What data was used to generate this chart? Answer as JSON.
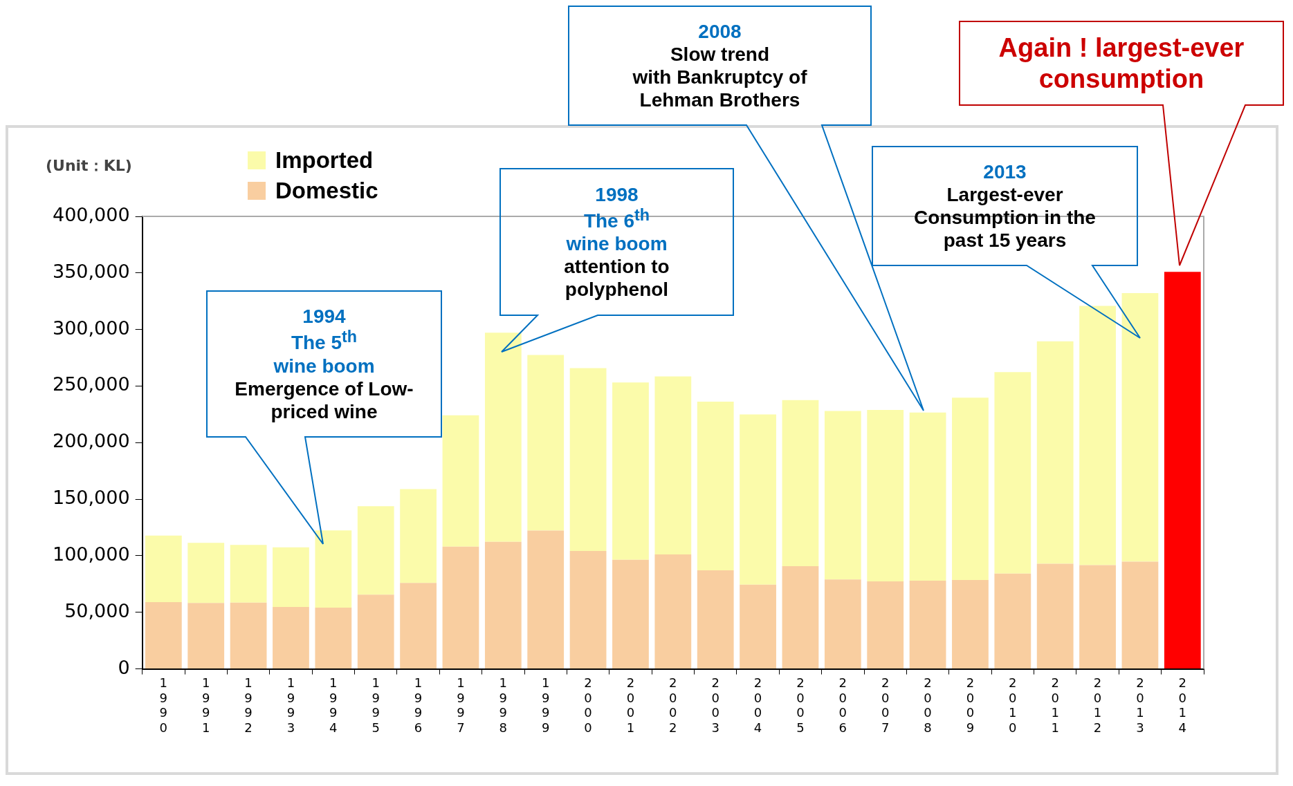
{
  "chart_data": {
    "type": "bar",
    "stacked": true,
    "ylabel": "(Unit：KL)",
    "legend": "top left",
    "grid": false,
    "categories": [
      "1990",
      "1991",
      "1992",
      "1993",
      "1994",
      "1995",
      "1996",
      "1997",
      "1998",
      "1999",
      "2000",
      "2001",
      "2002",
      "2003",
      "2004",
      "2005",
      "2006",
      "2007",
      "2008",
      "2009",
      "2010",
      "2011",
      "2012",
      "2013",
      "2014"
    ],
    "series": [
      {
        "name": "Domestic",
        "color": "#f9cea0",
        "values": [
          59100,
          58200,
          58500,
          54700,
          54100,
          65600,
          76000,
          108000,
          112400,
          122200,
          104200,
          96500,
          101200,
          87200,
          74400,
          90800,
          79000,
          77400,
          77900,
          78600,
          84200,
          93000,
          91700,
          94800,
          null
        ]
      },
      {
        "name": "Imported",
        "color": "#fbfbaa",
        "values": [
          58700,
          53300,
          51100,
          52800,
          68400,
          78200,
          82900,
          116200,
          184800,
          155300,
          161600,
          156700,
          157400,
          149000,
          150600,
          146800,
          149000,
          151500,
          148700,
          161100,
          178100,
          196500,
          229100,
          237300,
          null
        ]
      },
      {
        "color": "#ff0000",
        "values": [
          null,
          null,
          null,
          null,
          null,
          null,
          null,
          null,
          null,
          null,
          null,
          null,
          null,
          null,
          null,
          null,
          null,
          null,
          null,
          null,
          null,
          null,
          null,
          null,
          350900
        ]
      }
    ],
    "ylim": [
      0,
      400000
    ],
    "yticks": [
      0,
      {
        "value": 50000,
        "label": "50,000"
      },
      {
        "value": 100000,
        "label": "100,000"
      },
      {
        "value": 150000,
        "label": "150,000"
      },
      {
        "value": 200000,
        "label": "200,000"
      },
      {
        "value": 250000,
        "label": "250,000"
      },
      {
        "value": 300000,
        "label": "300,000"
      },
      {
        "value": 350000,
        "label": "350,000"
      },
      {
        "value": 400000,
        "label": "400,000"
      }
    ],
    "annotations": [
      "1994\nThe 5$^{th}$\nwine boom\nEmergence of Low-\npriced wine",
      "1998\nThe 6$^{th}$\nwine boom\nattention to\npolyphenol",
      "2008\nSlow trend\nwith Bankruptcy of\nLehman Brothers",
      "2013\nLargest-ever\nConsumption in the\npast 15 years",
      "Again ! largest-ever\nconsumption"
    ]
  }
}
